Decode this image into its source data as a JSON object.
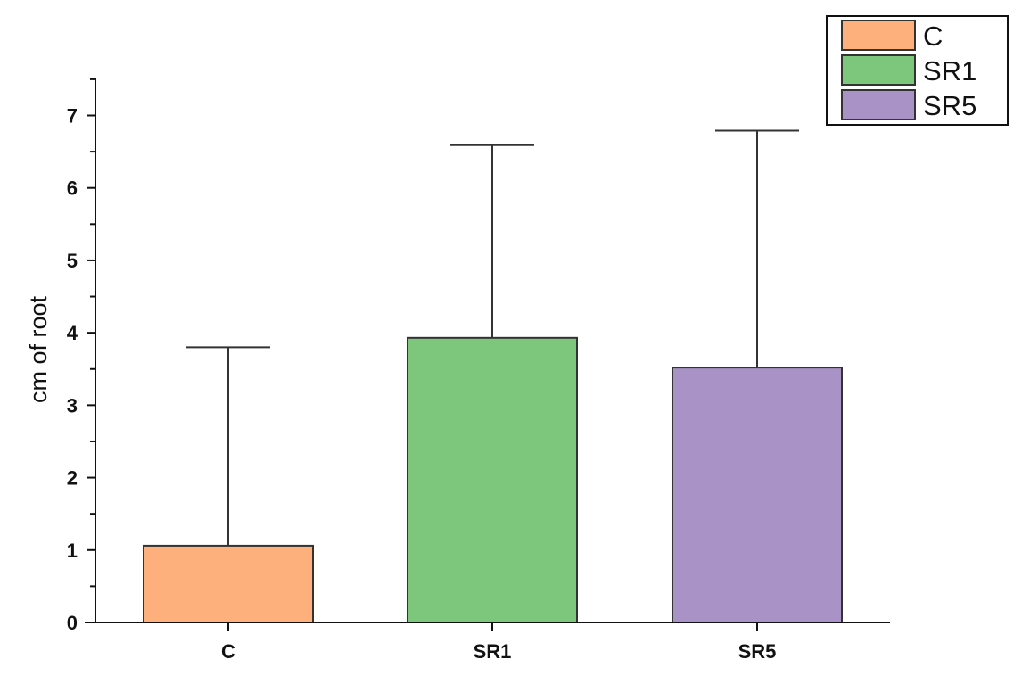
{
  "chart_data": {
    "type": "bar",
    "categories": [
      "C",
      "SR1",
      "SR5"
    ],
    "values": [
      1.06,
      3.93,
      3.52
    ],
    "error_upper": [
      3.8,
      6.59,
      6.79
    ],
    "ylabel": "cm of root",
    "xlabel": "",
    "ylim": [
      0,
      7.5
    ],
    "yticks": [
      "0",
      "1",
      "2",
      "3",
      "4",
      "5",
      "6",
      "7"
    ],
    "colors": [
      "#FDB07B",
      "#7CC77C",
      "#A993C6"
    ],
    "legend": {
      "position": "top-right",
      "entries": [
        "C",
        "SR1",
        "SR5"
      ]
    },
    "grid": false
  }
}
